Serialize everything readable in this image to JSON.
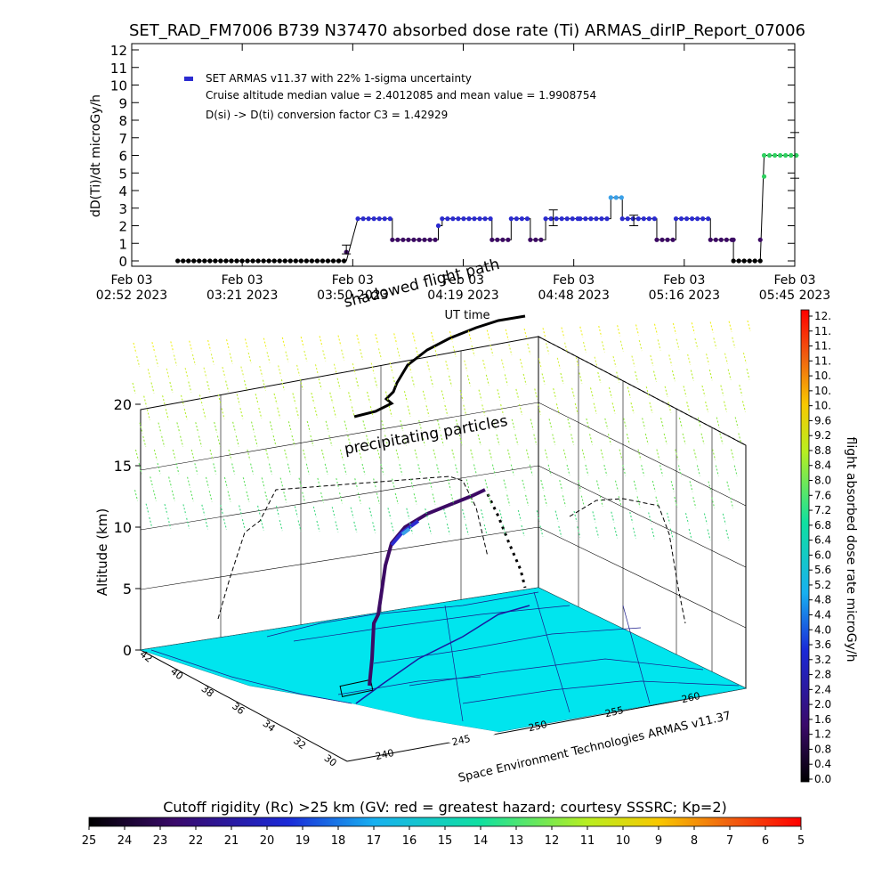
{
  "title": "SET_RAD_FM7006  B739 N37470 absorbed dose rate (Ti) ARMAS_dirIP_Report_07006",
  "colors": {
    "series_main": "#2b2bd0",
    "series_low": "#3c0a64",
    "series_peak": "#3aa0e8",
    "series_cruise_end": "#30d060",
    "ground": "#00e5ee",
    "path": "#000000"
  },
  "chart_data": [
    {
      "type": "scatter",
      "ylabel": "dD(Ti)/dt microGy/h",
      "xlabel": "UT time",
      "ylim": [
        0,
        12
      ],
      "y_ticks": [
        "0",
        "1",
        "2",
        "3",
        "4",
        "5",
        "6",
        "7",
        "8",
        "9",
        "10",
        "11",
        "12"
      ],
      "x_ticks": [
        {
          "line1": "Feb 03",
          "line2": "02:52 2023"
        },
        {
          "line1": "Feb 03",
          "line2": "03:21 2023"
        },
        {
          "line1": "Feb 03",
          "line2": "03:50 2023"
        },
        {
          "line1": "Feb 03",
          "line2": "04:19 2023"
        },
        {
          "line1": "Feb 03",
          "line2": "04:48 2023"
        },
        {
          "line1": "Feb 03",
          "line2": "05:16 2023"
        },
        {
          "line1": "Feb 03",
          "line2": "05:45 2023"
        }
      ],
      "x_range_minutes": [
        0,
        173
      ],
      "legend": [
        "SET ARMAS v11.37 with 22% 1-sigma uncertainty",
        "Cruise altitude median value = 2.4012085 and mean value = 1.9908754",
        "D(si) -> D(ti) conversion factor C3 = 1.42929"
      ],
      "series": [
        {
          "name": "SET ARMAS v11.37",
          "segments": [
            {
              "x": [
                12,
                56
              ],
              "y": 0
            },
            {
              "x": [
                59,
                68
              ],
              "y": 2.4
            },
            {
              "x": [
                68,
                80
              ],
              "y": 1.2
            },
            {
              "x": [
                80,
                81
              ],
              "y": 2.0
            },
            {
              "x": [
                81,
                94
              ],
              "y": 2.4
            },
            {
              "x": [
                94,
                99
              ],
              "y": 1.2
            },
            {
              "x": [
                99,
                104
              ],
              "y": 2.4
            },
            {
              "x": [
                104,
                108
              ],
              "y": 1.2
            },
            {
              "x": [
                108,
                117
              ],
              "y": 2.4
            },
            {
              "x": [
                117,
                125
              ],
              "y": 2.4
            },
            {
              "x": [
                125,
                128
              ],
              "y": 3.6
            },
            {
              "x": [
                128,
                137
              ],
              "y": 2.4
            },
            {
              "x": [
                137,
                142
              ],
              "y": 1.2
            },
            {
              "x": [
                142,
                151
              ],
              "y": 2.4
            },
            {
              "x": [
                151,
                157
              ],
              "y": 1.2
            },
            {
              "x": [
                157,
                164
              ],
              "y": 0
            },
            {
              "x": [
                165,
                174
              ],
              "y": 6.0
            }
          ],
          "extra_points": [
            {
              "x": 56,
              "y": 0.5
            },
            {
              "x": 157,
              "y": 1.2
            },
            {
              "x": 165,
              "y": 4.8
            },
            {
              "x": 164,
              "y": 1.2
            }
          ],
          "error_bars": [
            {
              "x": 56,
              "lo": 0.4,
              "hi": 0.9
            },
            {
              "x": 110,
              "lo": 2.0,
              "hi": 2.9
            },
            {
              "x": 131,
              "lo": 2.0,
              "hi": 2.6
            },
            {
              "x": 173,
              "lo": 4.7,
              "hi": 7.3
            }
          ]
        }
      ]
    },
    {
      "type": "scatter",
      "ylabel": "Altitude (km)",
      "z_ticks": [
        "0",
        "5",
        "10",
        "15",
        "20"
      ],
      "lat_ticks": [
        "42",
        "40",
        "38",
        "36",
        "34",
        "32",
        "30"
      ],
      "lon_ticks": [
        "240",
        "245",
        "250",
        "255",
        "260"
      ],
      "annotations": [
        "shadowed flight path",
        "precipitating particles"
      ],
      "footer": "Space Environment Technologies ARMAS v11.37"
    },
    {
      "type": "heatmap",
      "title": "flight absorbed dose rate microGy/h",
      "ticks": [
        "12.",
        "11.",
        "11.",
        "11.",
        "10.",
        "10.",
        "10.",
        "9.6",
        "9.2",
        "8.8",
        "8.4",
        "8.0",
        "7.6",
        "7.2",
        "6.8",
        "6.4",
        "6.0",
        "5.6",
        "5.2",
        "4.8",
        "4.4",
        "4.0",
        "3.6",
        "3.2",
        "2.8",
        "2.4",
        "2.0",
        "1.6",
        "1.2",
        "0.8",
        "0.4",
        "0.0"
      ]
    },
    {
      "type": "heatmap",
      "title": "Cutoff rigidity (Rc) >25 km (GV: red = greatest hazard; courtesy SSSRC; Kp=2)",
      "ticks": [
        "25",
        "24",
        "23",
        "22",
        "21",
        "20",
        "19",
        "18",
        "17",
        "16",
        "15",
        "14",
        "13",
        "12",
        "11",
        "10",
        "9",
        "8",
        "7",
        "6",
        "5"
      ]
    }
  ]
}
